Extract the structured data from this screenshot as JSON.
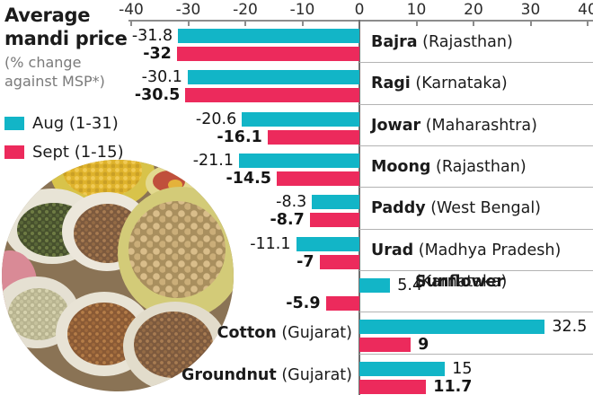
{
  "header": {
    "title_line1": "Average",
    "title_line2": "mandi price",
    "subtitle_line1": "(% change",
    "subtitle_line2": "against MSP*)"
  },
  "legend": [
    {
      "label": "Aug (1-31)",
      "color": "#12b5c7"
    },
    {
      "label": "Sept (1-15)",
      "color": "#ec2a5c"
    }
  ],
  "photo_alt": "Sacks of assorted grains and pulses at a market",
  "chart_data": {
    "type": "bar",
    "orientation": "horizontal",
    "title": "Average mandi price (% change against MSP*)",
    "xlabel": "% change against MSP",
    "xlim": [
      -40,
      40
    ],
    "x_ticks": [
      -40,
      -30,
      -20,
      -10,
      0,
      10,
      20,
      30,
      40
    ],
    "grid": false,
    "legend_position": "top-left",
    "series_names": [
      "Aug (1-31)",
      "Sept (1-15)"
    ],
    "colors": {
      "aug": "#12b5c7",
      "sept": "#ec2a5c"
    },
    "rows": [
      {
        "crop": "Bajra",
        "state": "(Rajasthan)",
        "aug": -31.8,
        "sept": -32,
        "label_side": "right"
      },
      {
        "crop": "Ragi",
        "state": "(Karnataka)",
        "aug": -30.1,
        "sept": -30.5,
        "label_side": "right"
      },
      {
        "crop": "Jowar",
        "state": "(Maharashtra)",
        "aug": -20.6,
        "sept": -16.1,
        "label_side": "right"
      },
      {
        "crop": "Moong",
        "state": "(Rajasthan)",
        "aug": -21.1,
        "sept": -14.5,
        "label_side": "right"
      },
      {
        "crop": "Paddy",
        "state": "(West Bengal)",
        "aug": -8.3,
        "sept": -8.7,
        "label_side": "right"
      },
      {
        "crop": "Urad",
        "state": "(Madhya Pradesh)",
        "aug": -11.1,
        "sept": -7,
        "label_side": "right"
      },
      {
        "crop": "Sunflower",
        "state": "(Karnataka)",
        "aug": 5.4,
        "sept": -5.9,
        "label_side": "right",
        "label_two_line": true
      },
      {
        "crop": "Cotton",
        "state": "(Gujarat)",
        "aug": 32.5,
        "sept": 9,
        "label_side": "left"
      },
      {
        "crop": "Groundnut",
        "state": "(Gujarat)",
        "aug": 15,
        "sept": 11.7,
        "label_side": "left"
      }
    ]
  }
}
